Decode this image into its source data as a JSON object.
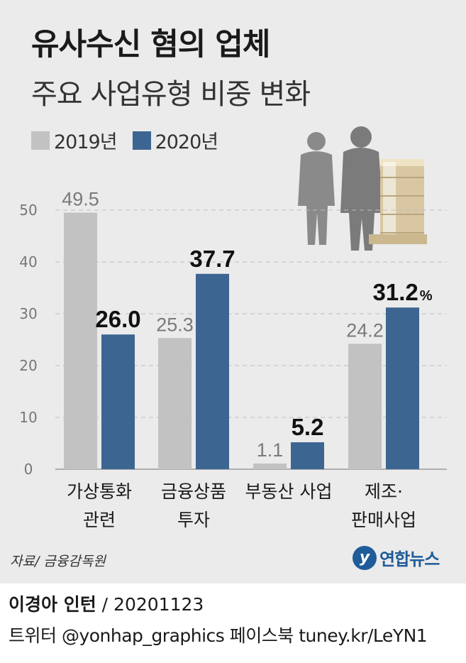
{
  "title": "유사수신 혐의 업체",
  "subtitle": "주요 사업유형 비중 변화",
  "legend": [
    {
      "label": "2019년",
      "color": "#c2c2c2"
    },
    {
      "label": "2020년",
      "color": "#3d6592"
    }
  ],
  "chart_data": {
    "type": "bar",
    "title": "유사수신 혐의 업체",
    "subtitle": "주요 사업유형 비중 변화",
    "categories": [
      {
        "line1": "가상통화",
        "line2": "관련"
      },
      {
        "line1": "금융상품",
        "line2": "투자"
      },
      {
        "line1": "부동산 사업",
        "line2": ""
      },
      {
        "line1": "제조·",
        "line2": "판매사업"
      }
    ],
    "series": [
      {
        "name": "2019년",
        "color": "#c2c2c2",
        "values": [
          49.5,
          25.3,
          1.1,
          24.2
        ],
        "labels": [
          "49.5",
          "25.3",
          "1.1",
          "24.2"
        ]
      },
      {
        "name": "2020년",
        "color": "#3d6592",
        "values": [
          26.0,
          37.7,
          5.2,
          31.2
        ],
        "labels": [
          "26.0",
          "37.7",
          "5.2",
          "31.2"
        ]
      }
    ],
    "unit_suffix": "%",
    "ylim": [
      0,
      50
    ],
    "yticks": [
      "0",
      "10",
      "20",
      "30",
      "40",
      "50"
    ],
    "grid": true,
    "legend_position": "top-left"
  },
  "source": "자료/ 금융감독원",
  "logo": {
    "mark": "y",
    "text": "연합뉴스"
  },
  "credit": {
    "author": "이경아 인턴",
    "separator": " / ",
    "date": "20201123"
  },
  "social": "트위터 @yonhap_graphics  페이스북 tuney.kr/LeYN1"
}
